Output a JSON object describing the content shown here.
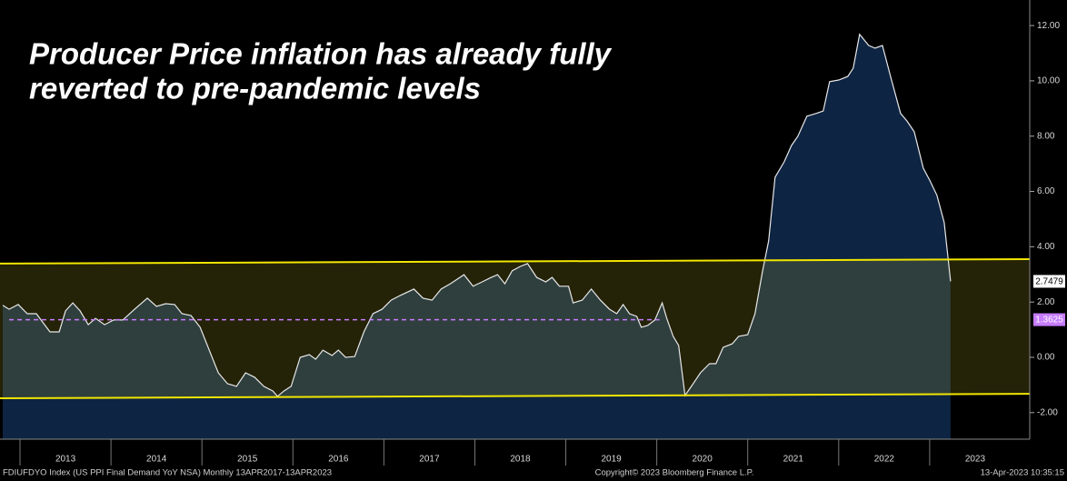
{
  "chart_data": {
    "type": "area",
    "title_lines": [
      "Producer Price inflation has already fully",
      "reverted to pre-pandemic levels"
    ],
    "x": [
      2012.81,
      2012.88,
      2012.98,
      2013.08,
      2013.18,
      2013.33,
      2013.43,
      2013.5,
      2013.58,
      2013.66,
      2013.75,
      2013.83,
      2013.93,
      2014.03,
      2014.13,
      2014.26,
      2014.4,
      2014.5,
      2014.6,
      2014.7,
      2014.78,
      2014.88,
      2014.98,
      2015.1,
      2015.18,
      2015.28,
      2015.38,
      2015.48,
      2015.58,
      2015.68,
      2015.78,
      2015.83,
      2015.9,
      2015.98,
      2016.08,
      2016.18,
      2016.25,
      2016.33,
      2016.43,
      2016.5,
      2016.58,
      2016.68,
      2016.78,
      2016.88,
      2016.98,
      2017.08,
      2017.18,
      2017.33,
      2017.43,
      2017.53,
      2017.63,
      2017.73,
      2017.88,
      2017.98,
      2018.08,
      2018.18,
      2018.25,
      2018.33,
      2018.41,
      2018.5,
      2018.58,
      2018.68,
      2018.78,
      2018.85,
      2018.93,
      2019.03,
      2019.08,
      2019.18,
      2019.28,
      2019.38,
      2019.48,
      2019.56,
      2019.63,
      2019.7,
      2019.78,
      2019.83,
      2019.9,
      2019.98,
      2020.06,
      2020.11,
      2020.18,
      2020.24,
      2020.31,
      2020.38,
      2020.48,
      2020.58,
      2020.65,
      2020.73,
      2020.83,
      2020.9,
      2021.0,
      2021.08,
      2021.16,
      2021.23,
      2021.3,
      2021.4,
      2021.48,
      2021.55,
      2021.65,
      2021.75,
      2021.83,
      2021.9,
      2022.0,
      2022.1,
      2022.16,
      2022.23,
      2022.33,
      2022.4,
      2022.48,
      2022.58,
      2022.68,
      2022.75,
      2022.83,
      2022.93,
      2023.0,
      2023.08,
      2023.16,
      2023.23
    ],
    "series": [
      {
        "name": "FDIUFDYO Index",
        "color": "#e8e8e8",
        "fill": "#0e2443",
        "values": [
          1.88,
          1.74,
          1.91,
          1.58,
          1.58,
          0.92,
          0.92,
          1.68,
          1.97,
          1.68,
          1.18,
          1.41,
          1.18,
          1.35,
          1.35,
          1.74,
          2.14,
          1.84,
          1.94,
          1.91,
          1.58,
          1.51,
          1.09,
          0.1,
          -0.56,
          -0.95,
          -1.05,
          -0.56,
          -0.72,
          -1.05,
          -1.22,
          -1.41,
          -1.22,
          -1.05,
          0,
          0.1,
          -0.07,
          0.26,
          0.07,
          0.26,
          0,
          0.03,
          0.92,
          1.58,
          1.74,
          2.07,
          2.24,
          2.47,
          2.14,
          2.07,
          2.47,
          2.66,
          2.99,
          2.57,
          2.73,
          2.89,
          2.99,
          2.66,
          3.13,
          3.29,
          3.39,
          2.89,
          2.73,
          2.89,
          2.57,
          2.57,
          1.97,
          2.07,
          2.47,
          2.07,
          1.74,
          1.58,
          1.91,
          1.58,
          1.48,
          1.09,
          1.15,
          1.35,
          1.97,
          1.41,
          0.76,
          0.43,
          -1.38,
          -1.05,
          -0.56,
          -0.23,
          -0.23,
          0.36,
          0.49,
          0.76,
          0.82,
          1.58,
          3.06,
          4.21,
          6.51,
          7.07,
          7.66,
          7.99,
          8.72,
          8.82,
          8.91,
          9.97,
          10.03,
          10.16,
          10.46,
          11.68,
          11.28,
          11.18,
          11.28,
          10.03,
          8.82,
          8.55,
          8.16,
          6.84,
          6.41,
          5.86,
          4.87,
          2.7479
        ]
      }
    ],
    "channel": {
      "color": "#f2e600",
      "band_color": "rgba(200,190,40,0.18)",
      "upper": {
        "x": [
          2012.78,
          2024.1
        ],
        "values": [
          3.39,
          3.55
        ]
      },
      "lower": {
        "x": [
          2012.78,
          2024.1
        ],
        "values": [
          -1.48,
          -1.32
        ]
      }
    },
    "average_line": {
      "value": 1.3625,
      "x": [
        2012.88,
        2020.03
      ],
      "color": "#c77dff"
    },
    "xlim": [
      2012.78,
      2024.1
    ],
    "xticks": [
      2013,
      2014,
      2015,
      2016,
      2017,
      2018,
      2019,
      2020,
      2021,
      2022,
      2023
    ],
    "ylim": [
      -2.96,
      12.76
    ],
    "yticks": [
      {
        "value": -2,
        "label": "-2.00"
      },
      {
        "value": 0,
        "label": "0.00"
      },
      {
        "value": 2,
        "label": "2.00"
      },
      {
        "value": 4,
        "label": "4.00"
      },
      {
        "value": 6,
        "label": "6.00"
      },
      {
        "value": 8,
        "label": "8.00"
      },
      {
        "value": 10,
        "label": "10.00"
      },
      {
        "value": 12,
        "label": "12.00"
      }
    ],
    "footer": {
      "left": "FDIUFDYO Index (US PPI Final Demand YoY NSA)  Monthly 13APR2017-13APR2023",
      "center": "Copyright© 2023 Bloomberg Finance L.P.",
      "right": "13-Apr-2023 10:35:15"
    }
  }
}
